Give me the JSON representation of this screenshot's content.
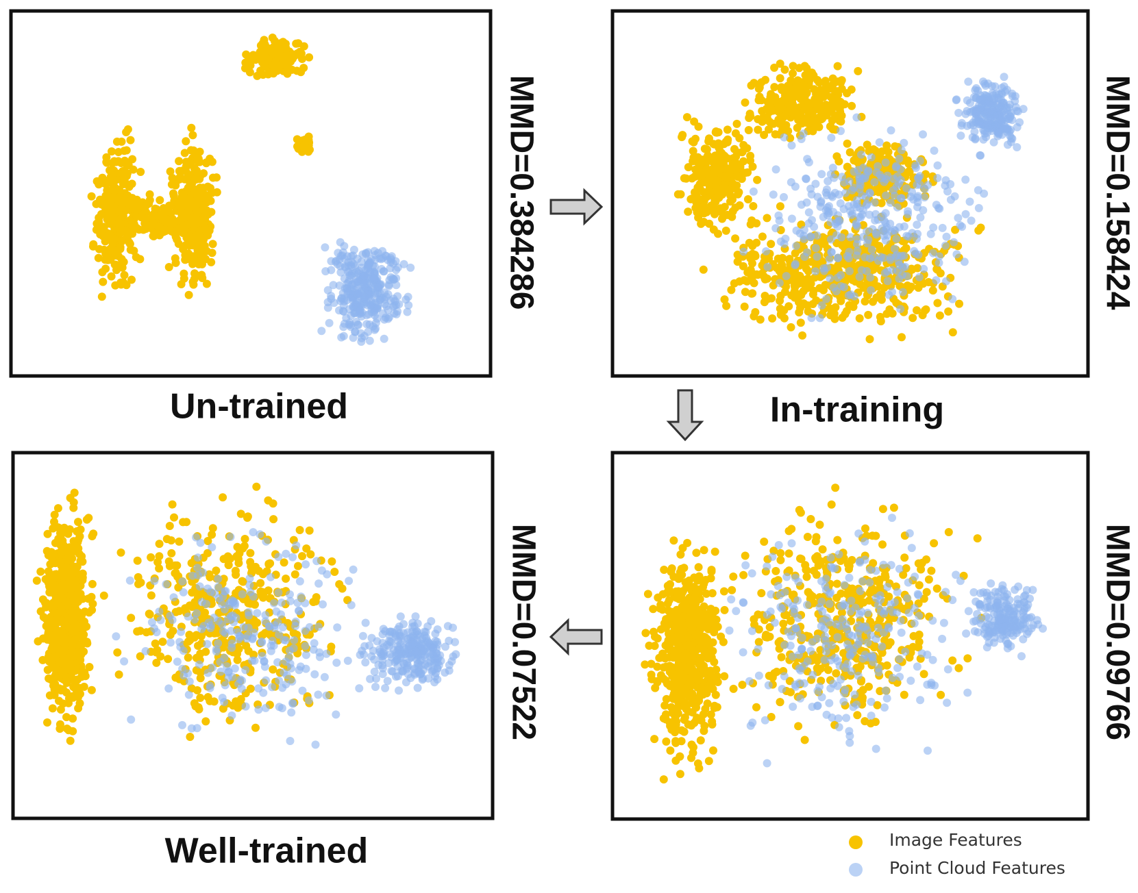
{
  "panels": [
    {
      "label": "Un-trained",
      "metric": "MMD=0.384286"
    },
    {
      "label": "In-training",
      "metric": "MMD=0.158424"
    },
    {
      "label": "Well-trained",
      "metric": "MMD=0.07522"
    },
    {
      "metric": "MMD=0.09766"
    }
  ],
  "legend": [
    {
      "label": "Image Features",
      "color": "#f7c300"
    },
    {
      "label": "Point Cloud Features",
      "color": "#8db4ef"
    }
  ]
}
